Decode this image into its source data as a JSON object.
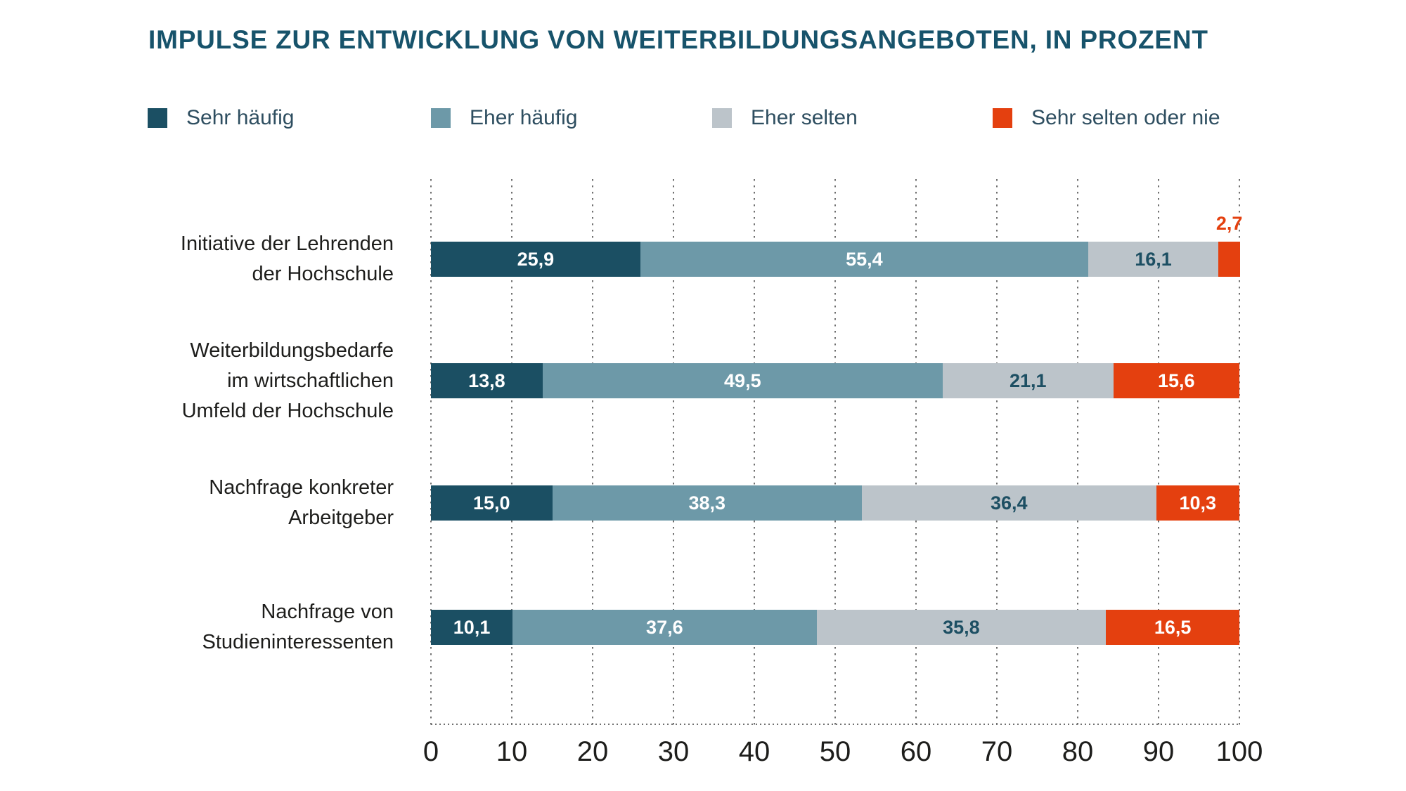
{
  "title": "IMPULSE ZUR ENTWICKLUNG VON WEITERBILDUNGSANGEBOTEN, IN PROZENT",
  "colors": {
    "title_text": "#17536B",
    "legend_text": "#2E4E60",
    "category_text": "#1D1D1B",
    "axis_text": "#1D1D1B",
    "grid_dots": "#707070",
    "sehr_haeufig": "#1B4F63",
    "eher_haeufig": "#6D99A8",
    "eher_selten": "#BCC4CA",
    "sehr_selten_oder_nie": "#E4400F"
  },
  "legend": {
    "items": [
      {
        "label": "Sehr häufig",
        "color": "#1B4F63"
      },
      {
        "label": "Eher häufig",
        "color": "#6D99A8"
      },
      {
        "label": "Eher selten",
        "color": "#BCC4CA"
      },
      {
        "label": "Sehr selten oder nie",
        "color": "#E4400F"
      }
    ]
  },
  "chart_data": {
    "type": "bar",
    "subtype": "horizontal-stacked",
    "title": "IMPULSE ZUR ENTWICKLUNG VON WEITERBILDUNGSANGEBOTEN, IN PROZENT",
    "xlabel": "",
    "ylabel": "",
    "xlim": [
      0,
      100
    ],
    "grid": "dotted-vertical",
    "legend_position": "top",
    "x_ticks": [
      0,
      10,
      20,
      30,
      40,
      50,
      60,
      70,
      80,
      90,
      100
    ],
    "categories": [
      [
        "Initiative der Lehrenden",
        "der Hochschule"
      ],
      [
        "Weiterbildungsbedarfe",
        "im wirtschaftlichen",
        "Umfeld der Hochschule"
      ],
      [
        "Nachfrage konkreter",
        "Arbeitgeber"
      ],
      [
        "Nachfrage von",
        "Studieninteressenten"
      ]
    ],
    "series": [
      {
        "name": "Sehr häufig",
        "color": "#1B4F63",
        "label_color": "#FFFFFF",
        "values": [
          25.9,
          13.8,
          15.0,
          10.1
        ],
        "labels": [
          "25,9",
          "13,8",
          "15,0",
          "10,1"
        ]
      },
      {
        "name": "Eher häufig",
        "color": "#6D99A8",
        "label_color": "#FFFFFF",
        "values": [
          55.4,
          49.5,
          38.3,
          37.6
        ],
        "labels": [
          "55,4",
          "49,5",
          "38,3",
          "37,6"
        ]
      },
      {
        "name": "Eher selten",
        "color": "#BCC4CA",
        "label_color": "#1D4F63",
        "values": [
          16.1,
          21.1,
          36.4,
          35.8
        ],
        "labels": [
          "16,1",
          "21,1",
          "36,4",
          "35,8"
        ]
      },
      {
        "name": "Sehr selten oder nie",
        "color": "#E4400F",
        "label_color": "#FFFFFF",
        "outside_label_color": "#E4400F",
        "outside_label_rows": [
          0
        ],
        "values": [
          2.7,
          15.6,
          10.3,
          16.5
        ],
        "labels": [
          "2,7",
          "15,6",
          "10,3",
          "16,5"
        ]
      }
    ]
  }
}
